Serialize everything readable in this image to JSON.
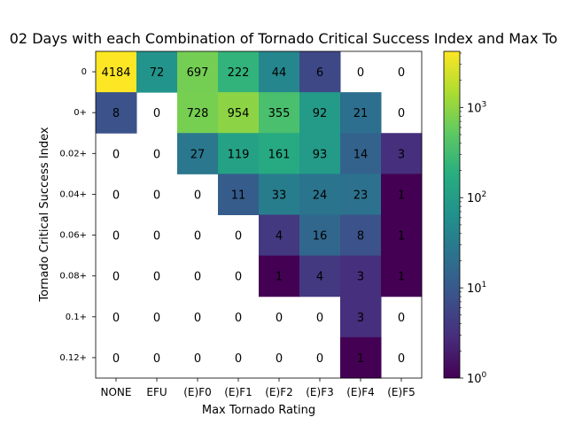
{
  "chart_data": {
    "type": "heatmap",
    "title": "02 Days with each Combination of Tornado Critical Success Index and Max To",
    "xlabel": "Max Tornado Rating",
    "ylabel": "Tornado Critical Success Index",
    "x_categories": [
      "NONE",
      "EFU",
      "(E)F0",
      "(E)F1",
      "(E)F2",
      "(E)F3",
      "(E)F4",
      "(E)F5"
    ],
    "y_categories": [
      "0",
      "0+",
      "0.02+",
      "0.04+",
      "0.06+",
      "0.08+",
      "0.1+",
      "0.12+"
    ],
    "values": [
      [
        4184,
        72,
        697,
        222,
        44,
        6,
        0,
        0
      ],
      [
        8,
        0,
        728,
        954,
        355,
        92,
        21,
        0
      ],
      [
        0,
        0,
        27,
        119,
        161,
        93,
        14,
        3
      ],
      [
        0,
        0,
        0,
        11,
        33,
        24,
        23,
        1
      ],
      [
        0,
        0,
        0,
        0,
        4,
        16,
        8,
        1
      ],
      [
        0,
        0,
        0,
        0,
        1,
        4,
        3,
        1
      ],
      [
        0,
        0,
        0,
        0,
        0,
        0,
        3,
        0
      ],
      [
        0,
        0,
        0,
        0,
        0,
        0,
        1,
        0
      ]
    ],
    "colorbar": {
      "scale": "log",
      "colormap": "viridis",
      "vmin": 1,
      "vmax": 4184,
      "tick_values": [
        1,
        10,
        100,
        1000
      ],
      "tick_labels": [
        "10",
        "10",
        "10",
        "10"
      ],
      "tick_exponents": [
        "0",
        "1",
        "2",
        "3"
      ]
    },
    "zero_cells": "white",
    "grid": false
  }
}
